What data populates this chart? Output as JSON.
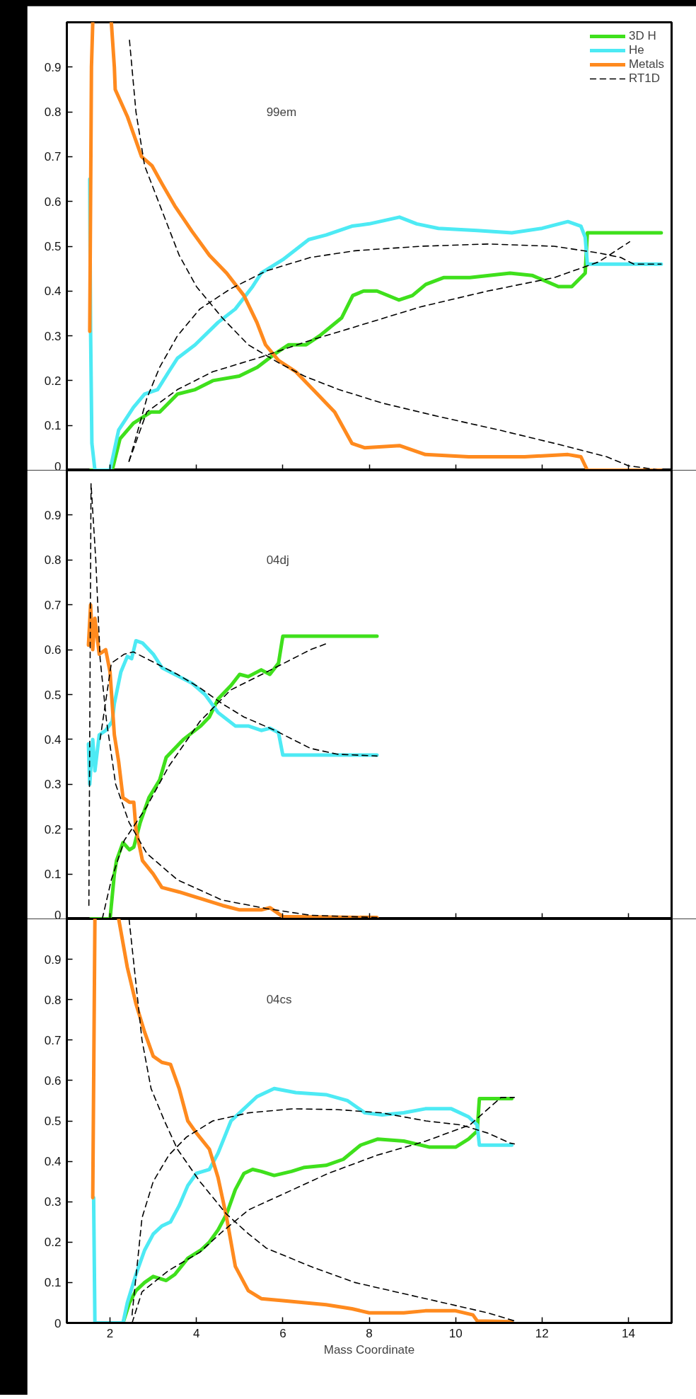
{
  "chart_data": [
    {
      "type": "line",
      "annotations": [
        "99em"
      ],
      "xlim": [
        1,
        15
      ],
      "ylim": [
        0,
        1
      ],
      "xticks": [
        2,
        4,
        6,
        8,
        10,
        12,
        14
      ],
      "yticks": [
        0,
        0.1,
        0.2,
        0.3,
        0.4,
        0.5,
        0.6,
        0.7,
        0.8,
        0.9
      ],
      "tick_labels": "y",
      "legend": "top right",
      "series": [
        {
          "name": "3D H",
          "color": "#3fe01c",
          "line_style": "solid",
          "x": [
            1.55,
            2.05,
            2.23,
            2.54,
            2.95,
            3.15,
            3.56,
            3.97,
            4.38,
            4.99,
            5.41,
            5.82,
            6.13,
            6.54,
            6.85,
            7.36,
            7.62,
            7.87,
            8.18,
            8.69,
            9.0,
            9.31,
            9.72,
            10.33,
            11.26,
            11.77,
            12.38,
            12.69,
            13.0,
            13.05,
            14.76
          ],
          "values": [
            0,
            0,
            0.07,
            0.105,
            0.13,
            0.13,
            0.17,
            0.18,
            0.2,
            0.21,
            0.23,
            0.26,
            0.28,
            0.28,
            0.3,
            0.34,
            0.39,
            0.4,
            0.4,
            0.38,
            0.39,
            0.415,
            0.43,
            0.43,
            0.44,
            0.435,
            0.41,
            0.41,
            0.44,
            0.53,
            0.53
          ]
        },
        {
          "name": "He",
          "color": "#4deaf4",
          "line_style": "solid",
          "x": [
            1.53,
            1.55,
            1.58,
            1.65,
            2.0,
            2.2,
            2.54,
            2.8,
            3.1,
            3.36,
            3.56,
            3.97,
            4.5,
            4.9,
            5.3,
            5.5,
            6.0,
            6.6,
            7.0,
            7.6,
            8.0,
            8.7,
            9.1,
            9.6,
            10.5,
            11.3,
            12.0,
            12.6,
            12.9,
            13.0,
            13.05,
            14.76
          ],
          "values": [
            0.65,
            0.31,
            0.06,
            0,
            0,
            0.09,
            0.14,
            0.17,
            0.18,
            0.22,
            0.25,
            0.28,
            0.33,
            0.36,
            0.41,
            0.44,
            0.47,
            0.515,
            0.525,
            0.545,
            0.55,
            0.565,
            0.55,
            0.54,
            0.535,
            0.53,
            0.54,
            0.555,
            0.545,
            0.52,
            0.46,
            0.46
          ]
        },
        {
          "name": "Metals",
          "color": "#ff8a1e",
          "line_style": "solid",
          "x": [
            1.53,
            1.57,
            1.6,
            1.8,
            2.03,
            2.1,
            2.12,
            2.4,
            2.73,
            2.97,
            3.2,
            3.5,
            3.9,
            4.3,
            4.7,
            5.1,
            5.4,
            5.6,
            5.9,
            6.3,
            6.7,
            7.2,
            7.6,
            7.9,
            8.7,
            9.3,
            10.3,
            11.6,
            12.6,
            12.9,
            13.05,
            14.76
          ],
          "values": [
            0.31,
            0.9,
            1.0,
            null,
            1.0,
            0.9,
            0.85,
            0.79,
            0.7,
            0.68,
            0.64,
            0.59,
            0.533,
            0.48,
            0.44,
            0.39,
            0.33,
            0.28,
            0.245,
            0.22,
            0.18,
            0.13,
            0.06,
            0.05,
            0.055,
            0.035,
            0.03,
            0.03,
            0.035,
            0.03,
            0,
            0
          ]
        },
        {
          "name": "RT1D",
          "color": "#000000",
          "line_style": "dashed",
          "x": [
            2.45,
            2.6,
            2.8,
            3.2,
            3.6,
            4.0,
            4.6,
            5.2,
            5.9,
            6.5,
            7.3,
            8.3,
            9.6,
            11.0,
            12.5,
            13.5,
            14.0,
            14.76
          ],
          "values": [
            0.96,
            0.8,
            0.68,
            0.58,
            0.48,
            0.41,
            0.34,
            0.28,
            0.24,
            0.21,
            0.18,
            0.15,
            0.12,
            0.09,
            0.055,
            0.03,
            0.01,
            0
          ]
        },
        {
          "color": "#000000",
          "line_style": "dashed",
          "x": [
            2.44,
            2.59,
            2.85,
            3.15,
            3.56,
            4.08,
            4.79,
            5.62,
            6.64,
            7.67,
            9.2,
            10.74,
            12.28,
            13.31,
            13.82,
            14.13,
            14.76
          ],
          "values": [
            0.02,
            0.07,
            0.16,
            0.23,
            0.3,
            0.36,
            0.405,
            0.445,
            0.475,
            0.49,
            0.5,
            0.505,
            0.5,
            0.485,
            0.475,
            0.46,
            0.46
          ]
        },
        {
          "color": "#000000",
          "line_style": "dashed",
          "x": [
            2.44,
            2.85,
            3.56,
            4.38,
            5.41,
            6.64,
            7.67,
            9.2,
            10.74,
            12.28,
            13.31,
            14.03
          ],
          "values": [
            0.02,
            0.13,
            0.18,
            0.22,
            0.25,
            0.29,
            0.32,
            0.365,
            0.4,
            0.43,
            0.465,
            0.51
          ]
        }
      ]
    },
    {
      "type": "line",
      "annotations": [
        "04dj"
      ],
      "xlim": [
        1,
        15
      ],
      "ylim": [
        0,
        1
      ],
      "xticks": [
        2,
        4,
        6,
        8,
        10,
        12,
        14
      ],
      "yticks": [
        0,
        0.1,
        0.2,
        0.3,
        0.4,
        0.5,
        0.6,
        0.7,
        0.8,
        0.9
      ],
      "tick_labels": "y",
      "series": [
        {
          "color": "#3fe01c",
          "line_style": "solid",
          "x": [
            1.55,
            2.0,
            2.1,
            2.15,
            2.3,
            2.45,
            2.55,
            2.7,
            2.9,
            3.15,
            3.3,
            3.45,
            3.7,
            4.1,
            4.3,
            4.5,
            4.8,
            5.0,
            5.2,
            5.5,
            5.7,
            5.9,
            6.0,
            8.18
          ],
          "values": [
            0,
            0,
            0.1,
            0.13,
            0.17,
            0.154,
            0.16,
            0.215,
            0.27,
            0.31,
            0.36,
            0.375,
            0.4,
            0.43,
            0.45,
            0.49,
            0.52,
            0.545,
            0.54,
            0.555,
            0.545,
            0.57,
            0.63,
            0.63
          ]
        },
        {
          "color": "#4deaf4",
          "line_style": "solid",
          "x": [
            1.5,
            1.53,
            1.6,
            1.65,
            1.75,
            1.9,
            2.05,
            2.1,
            2.25,
            2.4,
            2.5,
            2.6,
            2.75,
            3.0,
            3.2,
            3.5,
            3.9,
            4.2,
            4.5,
            4.9,
            5.2,
            5.5,
            5.7,
            5.9,
            6.0,
            8.18
          ],
          "values": [
            0.39,
            0.3,
            0.4,
            0.33,
            0.41,
            0.42,
            0.44,
            0.48,
            0.55,
            0.585,
            0.58,
            0.62,
            0.615,
            0.59,
            0.56,
            0.545,
            0.525,
            0.5,
            0.46,
            0.43,
            0.43,
            0.42,
            0.425,
            0.415,
            0.365,
            0.365
          ]
        },
        {
          "color": "#ff8a1e",
          "line_style": "solid",
          "x": [
            1.5,
            1.55,
            1.6,
            1.65,
            1.75,
            1.9,
            2.0,
            2.1,
            2.2,
            2.3,
            2.45,
            2.55,
            2.6,
            2.75,
            3.0,
            3.2,
            3.6,
            4.1,
            4.6,
            5.0,
            5.5,
            5.7,
            6.0,
            8.18
          ],
          "values": [
            0.61,
            0.7,
            0.6,
            0.67,
            0.59,
            0.6,
            0.55,
            0.41,
            0.35,
            0.27,
            0.26,
            0.26,
            0.2,
            0.13,
            0.1,
            0.07,
            0.06,
            0.045,
            0.03,
            0.02,
            0.02,
            0.025,
            0.005,
            0.003
          ]
        },
        {
          "color": "#000000",
          "line_style": "dashed",
          "x": [
            1.51,
            1.56,
            1.67,
            1.77,
            1.92,
            2.13,
            2.44,
            2.85,
            3.56,
            4.59,
            5.62,
            6.64,
            8.18
          ],
          "values": [
            0.03,
            0.97,
            0.8,
            0.58,
            0.44,
            0.3,
            0.215,
            0.146,
            0.087,
            0.042,
            0.023,
            0.008,
            0.003
          ]
        },
        {
          "color": "#000000",
          "line_style": "dashed",
          "x": [
            1.77,
            2.03,
            2.33,
            2.54,
            3.05,
            3.56,
            4.08,
            4.59,
            5.1,
            5.82,
            6.64,
            7.26,
            8.18
          ],
          "values": [
            0.4,
            0.57,
            0.59,
            0.595,
            0.57,
            0.545,
            0.515,
            0.48,
            0.45,
            0.42,
            0.38,
            0.367,
            0.363
          ]
        },
        {
          "color": "#000000",
          "line_style": "dashed",
          "x": [
            1.82,
            2.03,
            2.33,
            2.85,
            3.36,
            4.08,
            4.79,
            5.62,
            6.64,
            7.05
          ],
          "values": [
            0,
            0.087,
            0.175,
            0.25,
            0.34,
            0.44,
            0.51,
            0.55,
            0.6,
            0.615
          ]
        }
      ]
    },
    {
      "type": "line",
      "annotations": [
        "04cs"
      ],
      "xlabel": "Mass Coordinate",
      "xlim": [
        1,
        15
      ],
      "ylim": [
        0,
        1
      ],
      "xticks": [
        2,
        4,
        6,
        8,
        10,
        12,
        14
      ],
      "yticks": [
        0,
        0.1,
        0.2,
        0.3,
        0.4,
        0.5,
        0.6,
        0.7,
        0.8,
        0.9
      ],
      "series": [
        {
          "color": "#3fe01c",
          "line_style": "solid",
          "x": [
            1.65,
            2.3,
            2.45,
            2.6,
            2.8,
            3.0,
            3.3,
            3.5,
            3.8,
            4.1,
            4.3,
            4.5,
            4.7,
            4.9,
            5.1,
            5.3,
            5.5,
            5.8,
            6.2,
            6.5,
            7.0,
            7.4,
            7.8,
            8.2,
            8.8,
            9.4,
            10.0,
            10.3,
            10.5,
            10.55,
            11.3
          ],
          "values": [
            0,
            0,
            0.05,
            0.08,
            0.1,
            0.115,
            0.105,
            0.12,
            0.16,
            0.18,
            0.2,
            0.23,
            0.27,
            0.33,
            0.37,
            0.38,
            0.375,
            0.365,
            0.375,
            0.385,
            0.39,
            0.405,
            0.44,
            0.455,
            0.45,
            0.435,
            0.435,
            0.455,
            0.475,
            0.555,
            0.555
          ]
        },
        {
          "color": "#4deaf4",
          "line_style": "solid",
          "x": [
            1.62,
            1.65,
            2.3,
            2.4,
            2.6,
            2.8,
            3.0,
            3.2,
            3.4,
            3.6,
            3.8,
            4.0,
            4.3,
            4.5,
            4.8,
            5.1,
            5.4,
            5.8,
            6.3,
            7.0,
            7.5,
            7.9,
            8.3,
            8.8,
            9.3,
            9.9,
            10.3,
            10.5,
            10.55,
            11.3
          ],
          "values": [
            0.31,
            0,
            0,
            0.05,
            0.12,
            0.18,
            0.22,
            0.24,
            0.25,
            0.29,
            0.34,
            0.37,
            0.38,
            0.42,
            0.5,
            0.53,
            0.56,
            0.58,
            0.57,
            0.565,
            0.55,
            0.52,
            0.515,
            0.52,
            0.53,
            0.53,
            0.51,
            0.49,
            0.44,
            0.44
          ]
        },
        {
          "color": "#ff8a1e",
          "line_style": "solid",
          "x": [
            1.6,
            1.65,
            1.9,
            2.2,
            2.4,
            2.6,
            2.8,
            3.0,
            3.2,
            3.4,
            3.6,
            3.8,
            4.0,
            4.3,
            4.5,
            4.7,
            4.9,
            5.2,
            5.5,
            6.0,
            7.0,
            7.6,
            8.0,
            8.8,
            9.3,
            10.0,
            10.4,
            10.5,
            11.3
          ],
          "values": [
            0.31,
            1.0,
            null,
            1.0,
            0.88,
            0.79,
            0.72,
            0.66,
            0.645,
            0.64,
            0.58,
            0.5,
            0.47,
            0.43,
            0.36,
            0.26,
            0.14,
            0.08,
            0.06,
            0.055,
            0.045,
            0.035,
            0.025,
            0.025,
            0.03,
            0.03,
            0.02,
            0.005,
            0.003
          ]
        },
        {
          "color": "#000000",
          "line_style": "dashed",
          "x": [
            2.44,
            2.59,
            2.74,
            2.95,
            3.26,
            3.56,
            4.08,
            4.69,
            5.21,
            5.62,
            6.64,
            7.67,
            8.69,
            9.72,
            10.74,
            11.36
          ],
          "values": [
            1.0,
            0.85,
            0.7,
            0.58,
            0.5,
            0.43,
            0.35,
            0.27,
            0.22,
            0.185,
            0.14,
            0.1,
            0.075,
            0.05,
            0.025,
            0.005
          ]
        },
        {
          "color": "#000000",
          "line_style": "dashed",
          "x": [
            2.51,
            2.74,
            3.0,
            3.36,
            3.77,
            4.38,
            5.21,
            6.23,
            7.26,
            8.28,
            9.31,
            10.13,
            10.74,
            11.26,
            11.36
          ],
          "values": [
            0.02,
            0.26,
            0.35,
            0.415,
            0.46,
            0.5,
            0.52,
            0.53,
            0.528,
            0.52,
            0.5,
            0.49,
            0.47,
            0.445,
            0.443
          ]
        },
        {
          "color": "#000000",
          "line_style": "dashed",
          "x": [
            2.51,
            2.74,
            3.36,
            4.08,
            4.59,
            5.21,
            6.03,
            7.05,
            8.18,
            9.31,
            10.33,
            11.05,
            11.36
          ],
          "values": [
            0,
            0.077,
            0.13,
            0.175,
            0.225,
            0.28,
            0.32,
            0.37,
            0.415,
            0.45,
            0.49,
            0.558,
            0.558
          ]
        }
      ]
    }
  ]
}
